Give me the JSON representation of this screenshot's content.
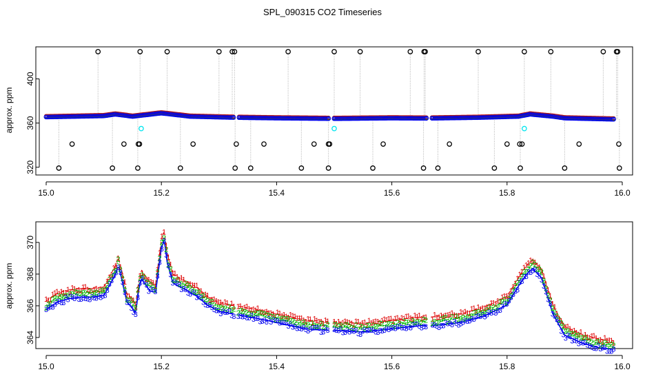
{
  "title": "SPL_090315  CO2 Timeseries",
  "colors": {
    "raw": "#000000",
    "outlier": "#00e5ee",
    "s1": "#dd0000",
    "s2": "#00bb00",
    "s3": "#0000ee",
    "trace": "#b0b0b0"
  },
  "chart_data": [
    {
      "type": "scatter",
      "name": "top-panel",
      "xlabel": "",
      "ylabel": "approx. ppm",
      "xlim": [
        15.0,
        16.0
      ],
      "ylim": [
        313,
        429
      ],
      "xticks": [
        "15.0",
        "15.2",
        "15.4",
        "15.6",
        "15.8",
        "16.0"
      ],
      "yticks": [
        "320",
        "360",
        "400"
      ],
      "baseline": [
        [
          15.0,
          365.5
        ],
        [
          15.05,
          366
        ],
        [
          15.1,
          366.5
        ],
        [
          15.12,
          368
        ],
        [
          15.15,
          366
        ],
        [
          15.2,
          369
        ],
        [
          15.25,
          366
        ],
        [
          15.33,
          365
        ],
        [
          15.4,
          364.5
        ],
        [
          15.5,
          364
        ],
        [
          15.6,
          364.5
        ],
        [
          15.66,
          364.3
        ],
        [
          15.75,
          365
        ],
        [
          15.82,
          366
        ],
        [
          15.84,
          368
        ],
        [
          15.88,
          366
        ],
        [
          15.9,
          364.5
        ],
        [
          15.98,
          363.5
        ]
      ],
      "gaps": [
        15.33,
        15.495,
        15.665
      ],
      "high_outliers": [
        15.09,
        15.163,
        15.21,
        15.3,
        15.323,
        15.327,
        15.42,
        15.5,
        15.545,
        15.632,
        15.656,
        15.658,
        15.75,
        15.83,
        15.876,
        15.967,
        15.99,
        15.992
      ],
      "low_outliers": [
        15.022,
        15.115,
        15.159,
        15.233,
        15.328,
        15.355,
        15.443,
        15.49,
        15.567,
        15.655,
        15.68,
        15.778,
        15.823,
        15.9,
        15.995
      ],
      "mid_low_outliers": [
        15.045,
        15.135,
        15.16,
        15.162,
        15.255,
        15.33,
        15.378,
        15.465,
        15.492,
        15.49,
        15.585,
        15.7,
        15.8,
        15.822,
        15.826,
        15.925,
        15.994
      ],
      "cyan_points": [
        [
          15.165,
          355
        ],
        [
          15.5,
          355
        ],
        [
          15.83,
          355
        ]
      ]
    },
    {
      "type": "line",
      "name": "bottom-panel",
      "xlabel": "",
      "ylabel": "approx. ppm",
      "xlim": [
        15.0,
        16.0
      ],
      "ylim": [
        363.3,
        371.3
      ],
      "xticks": [
        "15.0",
        "15.2",
        "15.4",
        "15.6",
        "15.8",
        "16.0"
      ],
      "yticks": [
        "364",
        "366",
        "368",
        "370"
      ],
      "gaps": [
        15.33,
        15.495,
        15.665
      ],
      "series": [
        {
          "name": "1",
          "label": "1",
          "offset": 0.55,
          "values": [
            [
              15.0,
              366.3
            ],
            [
              15.02,
              366.8
            ],
            [
              15.04,
              367.0
            ],
            [
              15.06,
              367.1
            ],
            [
              15.08,
              367.1
            ],
            [
              15.1,
              367.2
            ],
            [
              15.12,
              368.5
            ],
            [
              15.125,
              369.1
            ],
            [
              15.13,
              368.4
            ],
            [
              15.14,
              366.8
            ],
            [
              15.15,
              366.4
            ],
            [
              15.155,
              366.0
            ],
            [
              15.16,
              367.4
            ],
            [
              15.165,
              368.3
            ],
            [
              15.17,
              368.0
            ],
            [
              15.18,
              367.5
            ],
            [
              15.19,
              367.4
            ],
            [
              15.2,
              370.2
            ],
            [
              15.205,
              370.7
            ],
            [
              15.21,
              369.3
            ],
            [
              15.22,
              368.0
            ],
            [
              15.24,
              367.6
            ],
            [
              15.26,
              367.2
            ],
            [
              15.28,
              366.6
            ],
            [
              15.3,
              366.2
            ],
            [
              15.33,
              366.0
            ],
            [
              15.36,
              365.8
            ],
            [
              15.4,
              365.5
            ],
            [
              15.45,
              365.1
            ],
            [
              15.49,
              365.0
            ],
            [
              15.5,
              365.0
            ],
            [
              15.55,
              364.9
            ],
            [
              15.6,
              365.1
            ],
            [
              15.65,
              365.3
            ],
            [
              15.67,
              365.3
            ],
            [
              15.72,
              365.5
            ],
            [
              15.76,
              365.9
            ],
            [
              15.8,
              366.6
            ],
            [
              15.82,
              367.8
            ],
            [
              15.835,
              368.6
            ],
            [
              15.845,
              368.9
            ],
            [
              15.86,
              368.3
            ],
            [
              15.88,
              366.0
            ],
            [
              15.9,
              364.7
            ],
            [
              15.93,
              364.2
            ],
            [
              15.96,
              363.9
            ],
            [
              15.985,
              363.8
            ]
          ]
        },
        {
          "name": "2",
          "label": "2",
          "offset": 0.28
        },
        {
          "name": "3",
          "label": "3",
          "offset": 0.0
        }
      ]
    }
  ]
}
